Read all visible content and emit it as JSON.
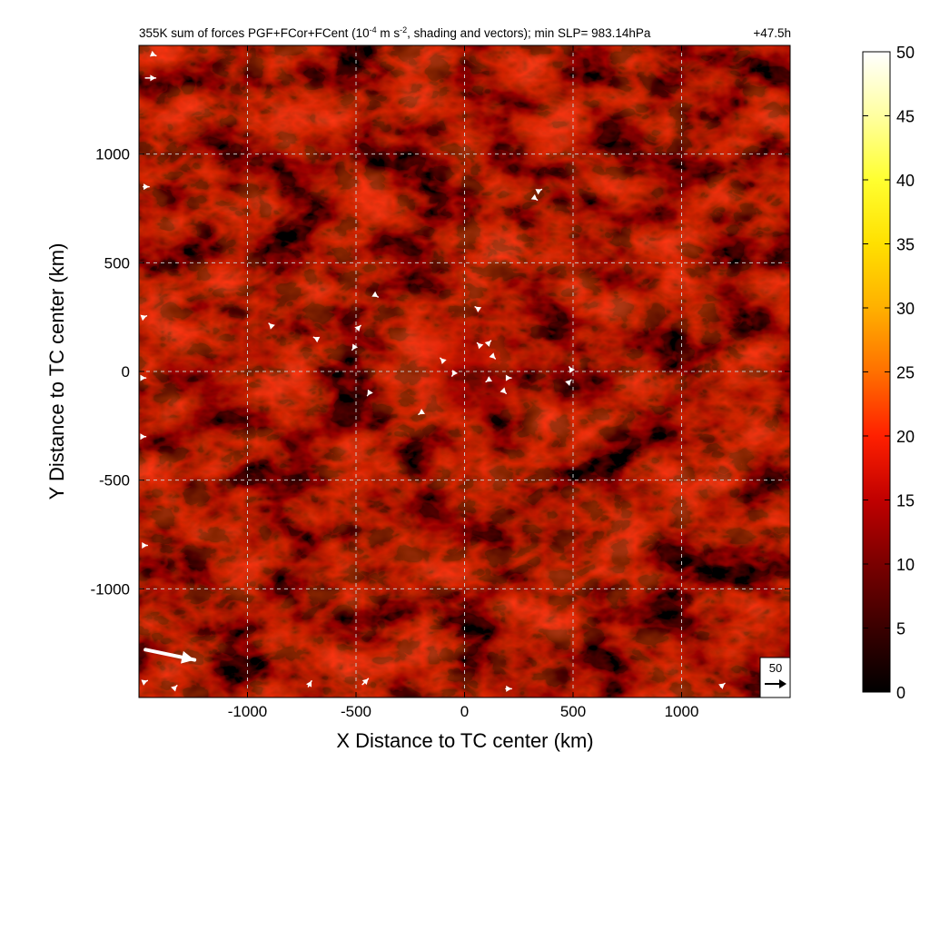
{
  "chart_data": {
    "type": "heatmap",
    "title": {
      "prefix": "355K sum of forces PGF+FCor+FCent (10",
      "exp1": "-4",
      "mid": " m s",
      "exp2": "-2",
      "suffix": ", shading and vectors); min SLP= 983.14hPa"
    },
    "time_label": "+47.5h",
    "xlabel": "X Distance to TC center (km)",
    "ylabel": "Y Distance to TC center (km)",
    "xlim": [
      -1500,
      1500
    ],
    "ylim": [
      -1500,
      1500
    ],
    "x_ticks": [
      {
        "value": -1000,
        "label": "-1000"
      },
      {
        "value": -500,
        "label": "-500"
      },
      {
        "value": 0,
        "label": "0"
      },
      {
        "value": 500,
        "label": "500"
      },
      {
        "value": 1000,
        "label": "1000"
      }
    ],
    "y_ticks": [
      {
        "value": 1000,
        "label": "1000"
      },
      {
        "value": 500,
        "label": "500"
      },
      {
        "value": 0,
        "label": "0"
      },
      {
        "value": -500,
        "label": "-500"
      },
      {
        "value": -1000,
        "label": "-1000"
      }
    ],
    "grid": true,
    "colorbar": {
      "min": 0,
      "max": 50,
      "ticks": [
        {
          "value": 50,
          "label": "50"
        },
        {
          "value": 45,
          "label": "45"
        },
        {
          "value": 40,
          "label": "40"
        },
        {
          "value": 35,
          "label": "35"
        },
        {
          "value": 30,
          "label": "30"
        },
        {
          "value": 25,
          "label": "25"
        },
        {
          "value": 20,
          "label": "20"
        },
        {
          "value": 15,
          "label": "15"
        },
        {
          "value": 10,
          "label": "10"
        },
        {
          "value": 5,
          "label": "5"
        },
        {
          "value": 0,
          "label": "0"
        }
      ],
      "colors": [
        "#000000",
        "#3a0000",
        "#7a0000",
        "#c00000",
        "#ff2000",
        "#ff7000",
        "#ffb000",
        "#ffe000",
        "#ffff30",
        "#ffffa0",
        "#ffffff"
      ]
    },
    "reference_vector": {
      "label": "50",
      "magnitude": 50
    },
    "vectors": [
      {
        "x": -1470,
        "y": 1350,
        "u": 25,
        "v": 0
      },
      {
        "x": -1440,
        "y": 1460,
        "u": 10,
        "v": -4
      },
      {
        "x": -1480,
        "y": 850,
        "u": 14,
        "v": 0
      },
      {
        "x": -1480,
        "y": 250,
        "u": 8,
        "v": 3
      },
      {
        "x": -1480,
        "y": -30,
        "u": 6,
        "v": 0
      },
      {
        "x": -1480,
        "y": -300,
        "u": 6,
        "v": 0
      },
      {
        "x": -1480,
        "y": -800,
        "u": 10,
        "v": 0
      },
      {
        "x": -1470,
        "y": -1280,
        "u": 120,
        "v": -25
      },
      {
        "x": -1480,
        "y": -1430,
        "u": 10,
        "v": 4
      },
      {
        "x": -1340,
        "y": -1460,
        "u": 8,
        "v": 8
      },
      {
        "x": -720,
        "y": -1450,
        "u": 8,
        "v": 14
      },
      {
        "x": -470,
        "y": -1440,
        "u": 14,
        "v": 14
      },
      {
        "x": 190,
        "y": -1460,
        "u": 14,
        "v": 0
      },
      {
        "x": 1180,
        "y": -1450,
        "u": 10,
        "v": 8
      },
      {
        "x": 320,
        "y": 800,
        "u": 8,
        "v": -6
      },
      {
        "x": 340,
        "y": 830,
        "u": 8,
        "v": 4
      },
      {
        "x": -890,
        "y": 210,
        "u": -6,
        "v": 6
      },
      {
        "x": -680,
        "y": 150,
        "u": -8,
        "v": 4
      },
      {
        "x": -490,
        "y": 200,
        "u": 6,
        "v": 6
      },
      {
        "x": -510,
        "y": 110,
        "u": -4,
        "v": -6
      },
      {
        "x": -440,
        "y": -100,
        "u": -4,
        "v": -6
      },
      {
        "x": -410,
        "y": 350,
        "u": 6,
        "v": -4
      },
      {
        "x": -200,
        "y": -190,
        "u": -6,
        "v": -4
      },
      {
        "x": 60,
        "y": 290,
        "u": -6,
        "v": 4
      },
      {
        "x": 70,
        "y": 120,
        "u": -6,
        "v": 6
      },
      {
        "x": 110,
        "y": 130,
        "u": 6,
        "v": 6
      },
      {
        "x": 130,
        "y": 70,
        "u": 6,
        "v": -6
      },
      {
        "x": 200,
        "y": -30,
        "u": 8,
        "v": 0
      },
      {
        "x": 180,
        "y": -90,
        "u": 6,
        "v": -6
      },
      {
        "x": 110,
        "y": -40,
        "u": -6,
        "v": -4
      },
      {
        "x": -100,
        "y": 50,
        "u": -6,
        "v": 6
      },
      {
        "x": -50,
        "y": -10,
        "u": -4,
        "v": -6
      },
      {
        "x": 480,
        "y": -50,
        "u": 6,
        "v": 6
      },
      {
        "x": 490,
        "y": 10,
        "u": -4,
        "v": 6
      }
    ]
  }
}
